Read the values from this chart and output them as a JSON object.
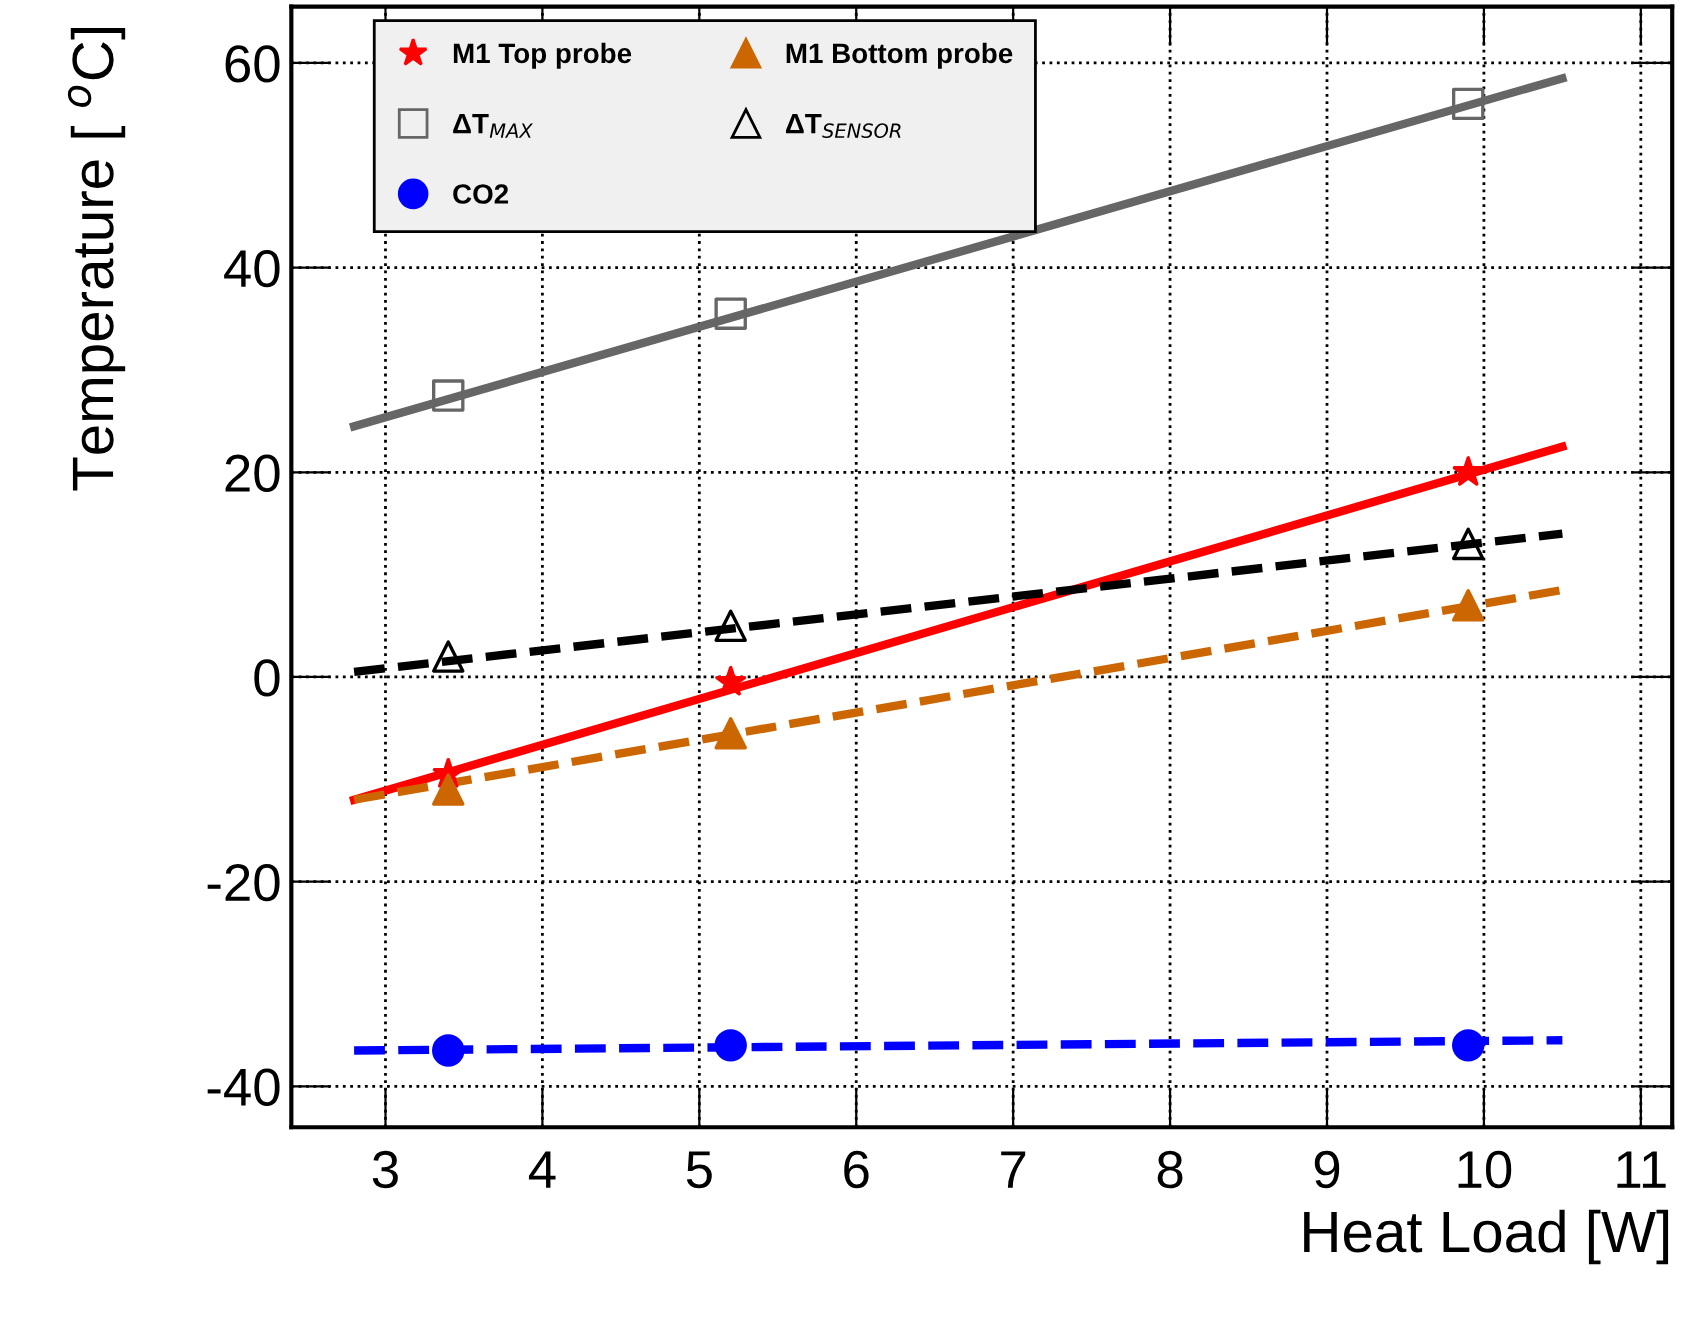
{
  "chart_data": {
    "type": "scatter",
    "xlabel": "Heat Load [W]",
    "ylabel": "Temperature [ $^{o}$C]",
    "xlim": [
      2.4,
      11.2
    ],
    "xticks": [
      3,
      4,
      5,
      6,
      7,
      8,
      9,
      10,
      11
    ],
    "ylim": [
      -44,
      65.5
    ],
    "yticks": [
      -40,
      -20,
      0,
      20,
      40,
      60
    ],
    "grid": true,
    "legend": "top left",
    "series": [
      {
        "name": "M1 Top probe",
        "marker": "star",
        "color": "#ff0000",
        "x": [
          3.4,
          5.2,
          9.9
        ],
        "values": [
          -9.5,
          -0.5,
          20
        ]
      },
      {
        "name": "M1 Bottom probe",
        "marker": "triangle",
        "color": "#cc6600",
        "x": [
          3.4,
          5.2,
          9.9
        ],
        "values": [
          -11,
          -5.5,
          7
        ]
      },
      {
        "name": "ΔT$_{MAX}$",
        "marker": "square",
        "color": "#666666",
        "x": [
          3.4,
          5.2,
          9.9
        ],
        "values": [
          27.5,
          35.5,
          56
        ]
      },
      {
        "name": "ΔT$_{SENSOR}$",
        "marker": "triangle",
        "color": "#000000",
        "x": [
          3.4,
          5.2,
          9.9
        ],
        "values": [
          2,
          5,
          13
        ]
      },
      {
        "name": "CO2",
        "marker": "circle",
        "color": "#0000ff",
        "x": [
          3.4,
          5.2,
          9.9
        ],
        "values": [
          -36.5,
          -36,
          -36
        ]
      },
      {
        "type": "line",
        "line_style": "solid",
        "color": "#ff0000",
        "x": [
          2.8,
          10.5
        ],
        "values": [
          -12,
          22.5
        ]
      },
      {
        "type": "line",
        "line_style": "dashed",
        "color": "#cc6600",
        "x": [
          2.8,
          10.5
        ],
        "values": [
          -12,
          8.5
        ]
      },
      {
        "type": "line",
        "line_style": "solid",
        "color": "#666666",
        "x": [
          2.8,
          10.5
        ],
        "values": [
          24.5,
          58.5
        ]
      },
      {
        "type": "line",
        "line_style": "dashed",
        "color": "#000000",
        "x": [
          2.8,
          10.5
        ],
        "values": [
          0.5,
          14
        ]
      },
      {
        "type": "line",
        "line_style": "dashed",
        "color": "#0000ff",
        "x": [
          2.8,
          10.5
        ],
        "values": [
          -36.5,
          -35.5
        ]
      }
    ]
  }
}
